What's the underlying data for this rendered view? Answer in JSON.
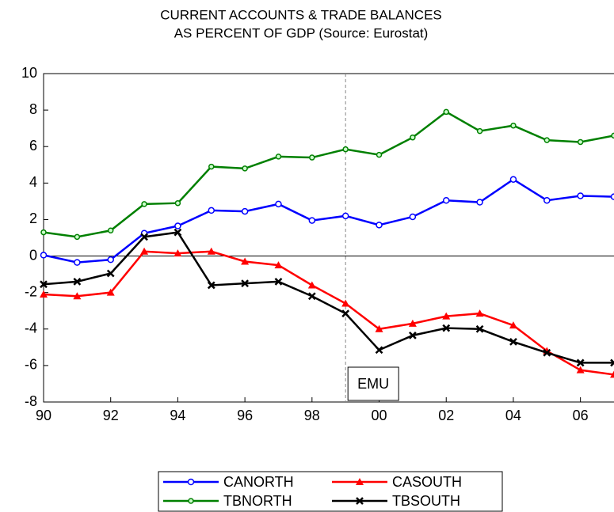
{
  "chart_data": {
    "type": "line",
    "title": [
      "CURRENT ACCOUNTS  & TRADE BALANCES",
      "AS PERCENT OF GDP (Source: Eurostat)"
    ],
    "x": [
      1990,
      1991,
      1992,
      1993,
      1994,
      1995,
      1996,
      1997,
      1998,
      1999,
      2000,
      2001,
      2002,
      2003,
      2004,
      2005,
      2006,
      2007
    ],
    "xlim": [
      1990,
      2007
    ],
    "xticks": [
      {
        "value": 1990,
        "label": "90"
      },
      {
        "value": 1992,
        "label": "92"
      },
      {
        "value": 1994,
        "label": "94"
      },
      {
        "value": 1996,
        "label": "96"
      },
      {
        "value": 1998,
        "label": "98"
      },
      {
        "value": 2000,
        "label": "00"
      },
      {
        "value": 2002,
        "label": "02"
      },
      {
        "value": 2004,
        "label": "04"
      },
      {
        "value": 2006,
        "label": "06"
      }
    ],
    "ylim": [
      -8,
      10
    ],
    "yticks": [
      -8,
      -6,
      -4,
      -2,
      0,
      2,
      4,
      6,
      8,
      10
    ],
    "series": [
      {
        "name": "CANORTH",
        "color": "#0000ff",
        "marker": "open-circle",
        "values": [
          0.05,
          -0.35,
          -0.2,
          1.25,
          1.65,
          2.5,
          2.45,
          2.85,
          1.95,
          2.2,
          1.7,
          2.15,
          3.05,
          2.95,
          4.2,
          3.05,
          3.3,
          3.25
        ]
      },
      {
        "name": "CASOUTH",
        "color": "#ff0000",
        "marker": "triangle",
        "values": [
          -2.1,
          -2.2,
          -2.0,
          0.25,
          0.15,
          0.25,
          -0.3,
          -0.5,
          -1.6,
          -2.6,
          -4.0,
          -3.7,
          -3.3,
          -3.15,
          -3.8,
          -5.2,
          -6.25,
          -6.5
        ]
      },
      {
        "name": "TBNORTH",
        "color": "#008000",
        "marker": "small-circle",
        "values": [
          1.3,
          1.05,
          1.4,
          2.85,
          2.9,
          4.9,
          4.8,
          5.45,
          5.4,
          5.85,
          5.55,
          6.5,
          7.9,
          6.85,
          7.15,
          6.35,
          6.25,
          6.6
        ]
      },
      {
        "name": "TBSOUTH",
        "color": "#000000",
        "marker": "cross",
        "values": [
          -1.55,
          -1.4,
          -0.95,
          1.05,
          1.3,
          -1.6,
          -1.5,
          -1.4,
          -2.2,
          -3.15,
          -5.15,
          -4.35,
          -3.95,
          -4.0,
          -4.7,
          -5.3,
          -5.85,
          -5.85
        ]
      }
    ],
    "annotations": [
      {
        "text": "EMU",
        "x": 1999
      }
    ],
    "legend": "bottom"
  }
}
